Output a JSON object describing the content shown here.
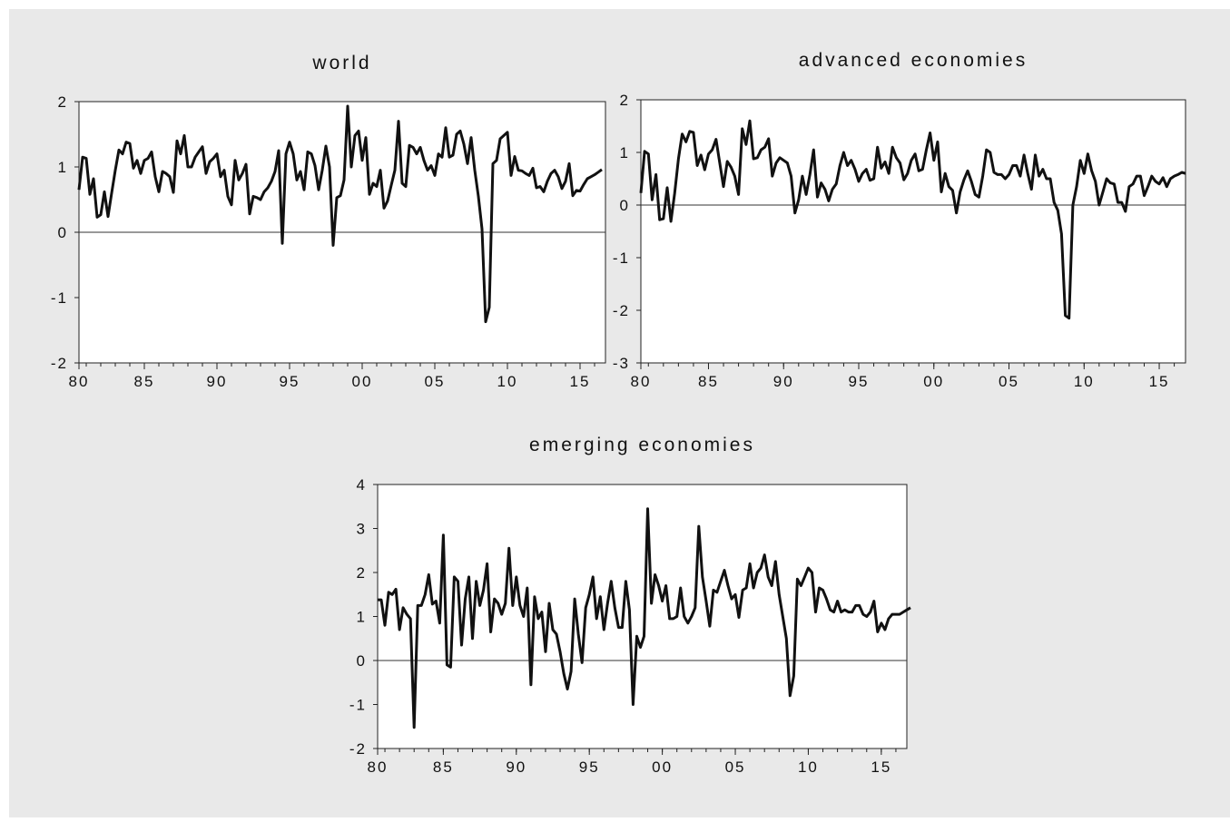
{
  "chart_data": [
    {
      "type": "line",
      "title": "world",
      "xlabel": "",
      "ylabel": "",
      "xlim": [
        1980.5,
        2016.75
      ],
      "ylim": [
        -2,
        2
      ],
      "x_ticks": [
        {
          "v": 1980,
          "label": "80"
        },
        {
          "v": 1985,
          "label": "85"
        },
        {
          "v": 1990,
          "label": "90"
        },
        {
          "v": 1995,
          "label": "95"
        },
        {
          "v": 2000,
          "label": "00"
        },
        {
          "v": 2005,
          "label": "05"
        },
        {
          "v": 2010,
          "label": "10"
        },
        {
          "v": 2015,
          "label": "15"
        }
      ],
      "y_ticks": [
        {
          "v": -2,
          "label": "-2"
        },
        {
          "v": -1,
          "label": "-1"
        },
        {
          "v": 0,
          "label": "0"
        },
        {
          "v": 1,
          "label": "1"
        },
        {
          "v": 2,
          "label": "2"
        }
      ],
      "zero_line": true,
      "grid": false,
      "line_color": "#111111",
      "series": [
        {
          "x_start": 1980.5,
          "x_step": 0.25,
          "values": [
            0.65,
            1.15,
            1.13,
            0.58,
            0.82,
            0.23,
            0.27,
            0.62,
            0.24,
            0.6,
            0.95,
            1.26,
            1.2,
            1.38,
            1.36,
            0.98,
            1.1,
            0.9,
            1.1,
            1.13,
            1.23,
            0.85,
            0.62,
            0.93,
            0.9,
            0.85,
            0.61,
            1.4,
            1.2,
            1.48,
            1.0,
            1.0,
            1.15,
            1.23,
            1.31,
            0.9,
            1.08,
            1.13,
            1.2,
            0.85,
            0.95,
            0.55,
            0.42,
            1.1,
            0.8,
            0.9,
            1.04,
            0.28,
            0.55,
            0.53,
            0.5,
            0.62,
            0.68,
            0.78,
            0.93,
            1.25,
            -0.17,
            1.2,
            1.38,
            1.2,
            0.8,
            0.93,
            0.65,
            1.23,
            1.2,
            1.02,
            0.65,
            0.95,
            1.32,
            1.0,
            -0.2,
            0.53,
            0.56,
            0.8,
            1.93,
            1.0,
            1.48,
            1.55,
            1.1,
            1.45,
            0.58,
            0.75,
            0.7,
            0.95,
            0.37,
            0.48,
            0.72,
            0.95,
            1.7,
            0.75,
            0.7,
            1.33,
            1.3,
            1.2,
            1.3,
            1.1,
            0.95,
            1.02,
            0.87,
            1.2,
            1.15,
            1.6,
            1.15,
            1.18,
            1.5,
            1.55,
            1.35,
            1.05,
            1.45,
            0.95,
            0.55,
            0.05,
            -1.37,
            -1.15,
            1.05,
            1.1,
            1.43,
            1.48,
            1.53,
            0.87,
            1.16,
            0.95,
            0.94,
            0.9,
            0.87,
            0.98,
            0.68,
            0.7,
            0.62,
            0.78,
            0.9,
            0.95,
            0.85,
            0.67,
            0.78,
            1.05,
            0.56,
            0.64,
            0.63,
            0.73,
            0.82,
            0.85,
            0.88,
            0.92,
            0.96
          ]
        }
      ]
    },
    {
      "type": "line",
      "title": "advanced economies",
      "xlabel": "",
      "ylabel": "",
      "xlim": [
        1980.5,
        2016.75
      ],
      "ylim": [
        -3,
        2
      ],
      "x_ticks": [
        {
          "v": 1980,
          "label": "80"
        },
        {
          "v": 1985,
          "label": "85"
        },
        {
          "v": 1990,
          "label": "90"
        },
        {
          "v": 1995,
          "label": "95"
        },
        {
          "v": 2000,
          "label": "00"
        },
        {
          "v": 2005,
          "label": "05"
        },
        {
          "v": 2010,
          "label": "10"
        },
        {
          "v": 2015,
          "label": "15"
        }
      ],
      "y_ticks": [
        {
          "v": -3,
          "label": "-3"
        },
        {
          "v": -2,
          "label": "-2"
        },
        {
          "v": -1,
          "label": "-1"
        },
        {
          "v": 0,
          "label": "0"
        },
        {
          "v": 1,
          "label": "1"
        },
        {
          "v": 2,
          "label": "2"
        }
      ],
      "zero_line": true,
      "grid": false,
      "line_color": "#111111",
      "series": [
        {
          "x_start": 1980.5,
          "x_step": 0.25,
          "values": [
            0.23,
            1.02,
            0.97,
            0.1,
            0.58,
            -0.28,
            -0.26,
            0.33,
            -0.31,
            0.22,
            0.88,
            1.35,
            1.2,
            1.4,
            1.38,
            0.75,
            0.95,
            0.67,
            0.97,
            1.05,
            1.25,
            0.8,
            0.35,
            0.83,
            0.72,
            0.55,
            0.2,
            1.45,
            1.15,
            1.6,
            0.88,
            0.9,
            1.05,
            1.1,
            1.26,
            0.55,
            0.8,
            0.9,
            0.85,
            0.8,
            0.55,
            -0.15,
            0.1,
            0.55,
            0.2,
            0.58,
            1.05,
            0.15,
            0.42,
            0.3,
            0.08,
            0.3,
            0.4,
            0.75,
            1.0,
            0.75,
            0.85,
            0.68,
            0.45,
            0.6,
            0.68,
            0.47,
            0.5,
            1.1,
            0.7,
            0.82,
            0.6,
            1.1,
            0.9,
            0.8,
            0.48,
            0.6,
            0.85,
            0.97,
            0.65,
            0.68,
            1.05,
            1.37,
            0.85,
            1.2,
            0.25,
            0.6,
            0.35,
            0.28,
            -0.15,
            0.25,
            0.48,
            0.65,
            0.45,
            0.2,
            0.15,
            0.55,
            1.05,
            1.0,
            0.62,
            0.58,
            0.58,
            0.5,
            0.58,
            0.75,
            0.75,
            0.55,
            0.95,
            0.6,
            0.3,
            0.95,
            0.55,
            0.68,
            0.5,
            0.5,
            0.05,
            -0.1,
            -0.55,
            -2.1,
            -2.15,
            0.0,
            0.35,
            0.85,
            0.6,
            0.97,
            0.65,
            0.45,
            0.0,
            0.25,
            0.5,
            0.42,
            0.4,
            0.05,
            0.05,
            -0.12,
            0.35,
            0.4,
            0.55,
            0.55,
            0.18,
            0.35,
            0.55,
            0.45,
            0.4,
            0.52,
            0.35,
            0.5,
            0.55,
            0.58,
            0.62,
            0.6
          ]
        }
      ]
    },
    {
      "type": "line",
      "title": "emerging economies",
      "xlabel": "",
      "ylabel": "",
      "xlim": [
        1980.5,
        2016.75
      ],
      "ylim": [
        -2,
        4
      ],
      "x_ticks": [
        {
          "v": 1980,
          "label": "80"
        },
        {
          "v": 1985,
          "label": "85"
        },
        {
          "v": 1990,
          "label": "90"
        },
        {
          "v": 1995,
          "label": "95"
        },
        {
          "v": 2000,
          "label": "00"
        },
        {
          "v": 2005,
          "label": "05"
        },
        {
          "v": 2010,
          "label": "10"
        },
        {
          "v": 2015,
          "label": "15"
        }
      ],
      "y_ticks": [
        {
          "v": -2,
          "label": "-2"
        },
        {
          "v": -1,
          "label": "-1"
        },
        {
          "v": 0,
          "label": "0"
        },
        {
          "v": 1,
          "label": "1"
        },
        {
          "v": 2,
          "label": "2"
        },
        {
          "v": 3,
          "label": "3"
        },
        {
          "v": 4,
          "label": "4"
        }
      ],
      "zero_line": true,
      "grid": false,
      "line_color": "#111111",
      "series": [
        {
          "x_start": 1980.5,
          "x_step": 0.25,
          "values": [
            1.38,
            1.38,
            0.8,
            1.55,
            1.5,
            1.62,
            0.7,
            1.2,
            1.05,
            0.95,
            -1.52,
            1.25,
            1.25,
            1.5,
            1.95,
            1.28,
            1.35,
            0.85,
            2.85,
            -0.1,
            -0.15,
            1.9,
            1.8,
            0.35,
            1.4,
            1.9,
            0.5,
            1.8,
            1.25,
            1.6,
            2.2,
            0.65,
            1.4,
            1.3,
            1.05,
            1.3,
            2.55,
            1.25,
            1.9,
            1.25,
            1.0,
            1.65,
            -0.55,
            1.45,
            0.95,
            1.1,
            0.2,
            1.3,
            0.7,
            0.6,
            0.2,
            -0.3,
            -0.65,
            -0.25,
            1.4,
            0.6,
            -0.05,
            1.2,
            1.5,
            1.9,
            0.95,
            1.45,
            0.7,
            1.3,
            1.8,
            1.2,
            0.75,
            0.75,
            1.8,
            1.15,
            -1.0,
            0.55,
            0.3,
            0.55,
            3.45,
            1.3,
            1.95,
            1.7,
            1.35,
            1.7,
            0.95,
            0.95,
            1.0,
            1.65,
            1.0,
            0.85,
            1.0,
            1.2,
            3.05,
            1.9,
            1.35,
            0.78,
            1.6,
            1.55,
            1.8,
            2.05,
            1.7,
            1.4,
            1.5,
            0.98,
            1.6,
            1.65,
            2.2,
            1.65,
            2.0,
            2.1,
            2.4,
            1.9,
            1.7,
            2.25,
            1.5,
            1.0,
            0.5,
            -0.8,
            -0.35,
            1.85,
            1.7,
            1.9,
            2.1,
            2.0,
            1.1,
            1.65,
            1.6,
            1.4,
            1.15,
            1.1,
            1.35,
            1.1,
            1.15,
            1.1,
            1.1,
            1.25,
            1.25,
            1.05,
            1.0,
            1.1,
            1.35,
            0.65,
            0.85,
            0.7,
            0.95,
            1.05,
            1.05,
            1.05,
            1.1,
            1.15,
            1.2
          ]
        }
      ]
    }
  ]
}
